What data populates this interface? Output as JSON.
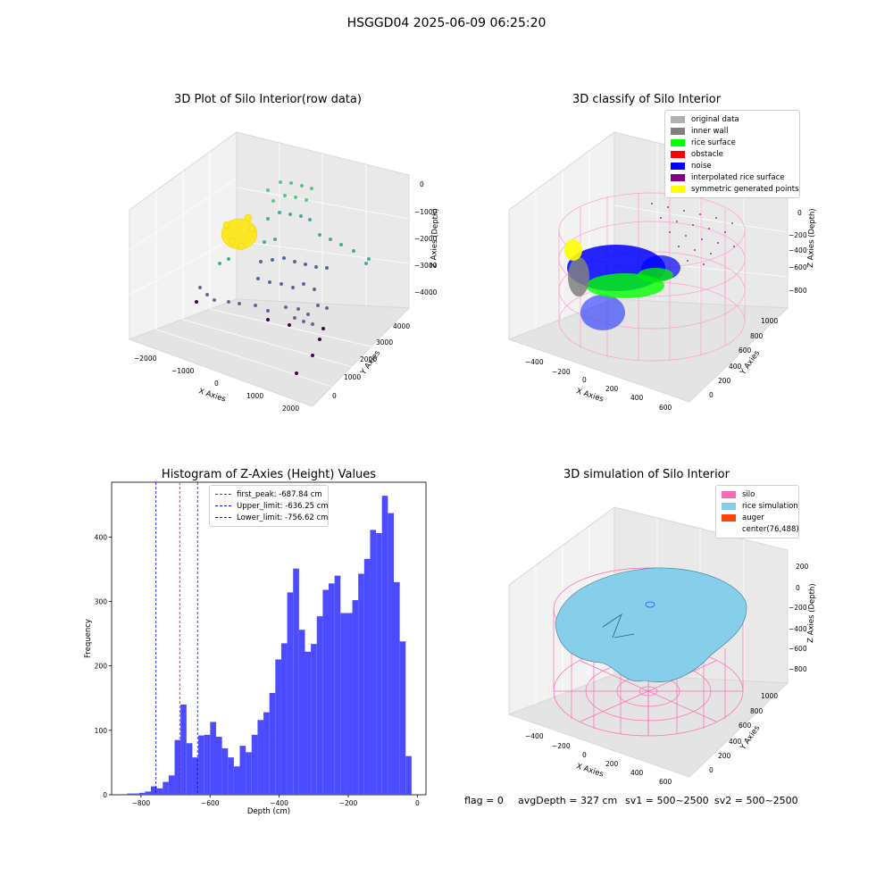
{
  "figure": {
    "suptitle": "HSGGD04 2025-06-09 06:25:20",
    "footer": {
      "flag": "flag = 0",
      "avg_depth": "avgDepth = 327 cm",
      "sv1": "sv1 = 500~2500",
      "sv2": "sv2 = 500~2500"
    }
  },
  "panels": {
    "raw": {
      "title": "3D Plot of Silo Interior(row data)",
      "xlabel": "X Axies",
      "ylabel": "Y Axies",
      "zlabel": "Z Axies (Depth)",
      "xticks": [
        "−2000",
        "−1000",
        "0",
        "1000",
        "2000"
      ],
      "yticks": [
        "0",
        "1000",
        "2000",
        "3000",
        "4000"
      ],
      "zticks": [
        "0",
        "−1000",
        "−2000",
        "−3000",
        "−4000"
      ]
    },
    "classify": {
      "title": "3D classify of Silo Interior",
      "xlabel": "X Axies",
      "ylabel": "Y Axies",
      "zlabel": "Z Axies (Depth)",
      "xticks": [
        "−400",
        "−200",
        "0",
        "200",
        "400",
        "600"
      ],
      "yticks": [
        "0",
        "200",
        "400",
        "600",
        "800",
        "1000"
      ],
      "zticks": [
        "0",
        "−200",
        "−400",
        "−600",
        "−800"
      ],
      "legend": [
        {
          "label": "original data",
          "color": "#b0b0b0"
        },
        {
          "label": "inner wall",
          "color": "#808080"
        },
        {
          "label": "rice surface",
          "color": "#00ff00"
        },
        {
          "label": "obstacle",
          "color": "#ff0000"
        },
        {
          "label": "noise",
          "color": "#0000ff"
        },
        {
          "label": "interpolated rice surface",
          "color": "#800080"
        },
        {
          "label": "symmetric generated points",
          "color": "#ffff00"
        }
      ]
    },
    "simulation": {
      "title": "3D simulation of Silo Interior",
      "xlabel": "X Axies",
      "ylabel": "Y Axies",
      "zlabel": "Z Axies (Depth)",
      "xticks": [
        "−400",
        "−200",
        "0",
        "200",
        "400",
        "600"
      ],
      "yticks": [
        "0",
        "200",
        "400",
        "600",
        "800",
        "1000"
      ],
      "zticks": [
        "200",
        "0",
        "−200",
        "−400",
        "−600",
        "−800"
      ],
      "legend": [
        {
          "label": "silo",
          "color": "#ff69b4"
        },
        {
          "label": "rice simulation",
          "color": "#87ceeb"
        },
        {
          "label": "auger",
          "color": "#ff4500"
        },
        {
          "label": "center(76,488)",
          "color": ""
        }
      ]
    }
  },
  "chart_data": [
    {
      "type": "bar",
      "title": "Histogram of Z-Axies (Height) Values",
      "xlabel": "Depth (cm)",
      "ylabel": "Frequency",
      "xlim": [
        -885,
        25
      ],
      "ylim": [
        0,
        485
      ],
      "xticks": [
        -800,
        -600,
        -400,
        -200,
        0
      ],
      "xtick_labels": [
        "−800",
        "−600",
        "−400",
        "−200",
        "0"
      ],
      "yticks": [
        0,
        100,
        200,
        300,
        400
      ],
      "bar_color": "#4b4bff",
      "bin_start": -857,
      "bin_width": 17.15,
      "values": [
        1,
        2,
        2,
        3,
        5,
        13,
        10,
        20,
        30,
        85,
        140,
        80,
        58,
        92,
        93,
        113,
        90,
        72,
        58,
        44,
        76,
        66,
        93,
        116,
        128,
        158,
        210,
        235,
        314,
        351,
        256,
        222,
        234,
        277,
        318,
        328,
        340,
        282,
        282,
        302,
        343,
        366,
        411,
        406,
        464,
        437,
        330,
        238,
        60
      ],
      "vlines": [
        {
          "x": -687.84,
          "color": "#ff0000",
          "label": "first_peak: -687.84 cm"
        },
        {
          "x": -636.25,
          "color": "#0000ff",
          "label": "Upper_limit: -636.25 cm"
        },
        {
          "x": -756.62,
          "color": "#0000ff",
          "label": "Lower_limit: -756.62 cm"
        }
      ]
    }
  ]
}
